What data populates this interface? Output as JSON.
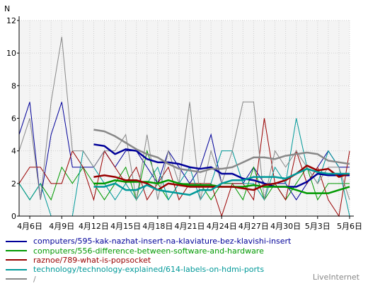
{
  "chart_data": {
    "type": "line",
    "ylabel": "N",
    "ylim": [
      0,
      12
    ],
    "yticks": [
      0,
      2,
      4,
      6,
      8,
      10,
      12
    ],
    "grid": true,
    "x": [
      "4月5日",
      "4月6日",
      "4月7日",
      "4月8日",
      "4月9日",
      "4月10日",
      "4月11日",
      "4月12日",
      "4月13日",
      "4月14日",
      "4月15日",
      "4月16日",
      "4月17日",
      "4月18日",
      "4月19日",
      "4月20日",
      "4月21日",
      "4月22日",
      "4月23日",
      "4月24日",
      "4月25日",
      "4月26日",
      "4月27日",
      "4月28日",
      "4月29日",
      "4月30日",
      "5月1日",
      "5月2日",
      "5月3日",
      "5月4日",
      "5月5日",
      "5月6日"
    ],
    "xtick_labels": [
      "4月6日",
      "4月9日",
      "4月12日",
      "4月15日",
      "4月18日",
      "4月21日",
      "4月24日",
      "4月27日",
      "4月30日",
      "5月3日",
      "5月6日"
    ],
    "series": [
      {
        "name": "computers/595-kak-nazhat-insert-na-klaviature-bez-klavishi-insert",
        "color": "#000099",
        "values": [
          5,
          7,
          1,
          5,
          7,
          3,
          3,
          3,
          4,
          3,
          4,
          4,
          3,
          2,
          4,
          3,
          2,
          3,
          5,
          2,
          2,
          2,
          3,
          2,
          2,
          2,
          1,
          2,
          3,
          4,
          3,
          3
        ],
        "avg": [
          null,
          null,
          null,
          null,
          null,
          null,
          null,
          4.4,
          4.3,
          3.8,
          4.1,
          4.0,
          3.5,
          3.3,
          3.3,
          3.2,
          3.0,
          2.9,
          3.0,
          2.6,
          2.6,
          2.3,
          2.2,
          2.0,
          1.8,
          1.8,
          1.8,
          2.1,
          2.6,
          2.5,
          2.5,
          2.5
        ]
      },
      {
        "name": "computers/556-difference-between-software-and-hardware",
        "color": "#009900",
        "values": [
          2,
          1,
          2,
          1,
          3,
          2,
          3,
          2,
          1,
          2,
          3,
          1,
          4,
          2,
          1,
          2,
          2,
          2,
          1,
          2,
          2,
          1,
          3,
          1,
          2,
          1,
          2,
          3,
          1,
          2,
          2,
          2
        ],
        "avg": [
          null,
          null,
          null,
          null,
          null,
          null,
          null,
          2.0,
          2.0,
          2.2,
          2.1,
          2.1,
          2.1,
          2.0,
          2.2,
          2.0,
          1.9,
          1.9,
          1.9,
          1.8,
          1.8,
          1.8,
          1.9,
          1.8,
          1.8,
          1.8,
          1.6,
          1.4,
          1.4,
          1.4,
          1.6,
          1.8
        ]
      },
      {
        "name": "raznoe/789-what-is-popsocket",
        "color": "#990000",
        "values": [
          2,
          3,
          3,
          2,
          2,
          4,
          3,
          1,
          4,
          3,
          2,
          3,
          1,
          2,
          3,
          1,
          2,
          2,
          2,
          0,
          2,
          2,
          1,
          6,
          2,
          1,
          4,
          2,
          3,
          1,
          0,
          4
        ],
        "avg": [
          null,
          null,
          null,
          null,
          null,
          null,
          null,
          2.4,
          2.5,
          2.4,
          2.2,
          2.2,
          2.0,
          1.6,
          2.0,
          1.9,
          1.8,
          1.8,
          1.8,
          1.8,
          1.8,
          1.7,
          1.6,
          1.9,
          2.0,
          2.2,
          2.6,
          3.1,
          2.8,
          2.9,
          2.4,
          2.6
        ]
      },
      {
        "name": "technology/technology-explained/614-labels-on-hdmi-ports",
        "color": "#009999",
        "values": [
          2,
          1,
          2,
          0,
          0,
          0,
          4,
          3,
          2,
          1,
          2,
          1,
          2,
          3,
          1,
          2,
          3,
          1,
          2,
          4,
          4,
          2,
          2,
          1,
          3,
          2,
          6,
          3,
          2,
          4,
          3,
          0
        ],
        "avg": [
          null,
          null,
          null,
          null,
          null,
          null,
          null,
          1.8,
          1.8,
          2.0,
          1.6,
          1.6,
          1.9,
          1.6,
          1.5,
          1.4,
          1.3,
          1.6,
          1.6,
          2.0,
          2.2,
          2.2,
          2.4,
          2.4,
          2.4,
          2.3,
          2.6,
          2.9,
          2.7,
          2.6,
          2.6,
          2.6
        ]
      },
      {
        "name": "/",
        "color": "#888888",
        "values": [
          4,
          6,
          1,
          7,
          11,
          4,
          4,
          3,
          4,
          4,
          5,
          1,
          5,
          1,
          4,
          2,
          7,
          1,
          4,
          2,
          4,
          7,
          7,
          1,
          4,
          3,
          4,
          3,
          2,
          3,
          3,
          1
        ],
        "avg": [
          null,
          null,
          null,
          null,
          null,
          null,
          null,
          5.3,
          5.2,
          4.9,
          4.5,
          4.1,
          3.8,
          3.6,
          3.2,
          2.9,
          2.8,
          2.7,
          2.9,
          2.9,
          3.0,
          3.3,
          3.6,
          3.6,
          3.5,
          3.7,
          3.8,
          3.9,
          3.8,
          3.4,
          3.3,
          3.2
        ]
      }
    ]
  },
  "watermark": "LiveInternet"
}
